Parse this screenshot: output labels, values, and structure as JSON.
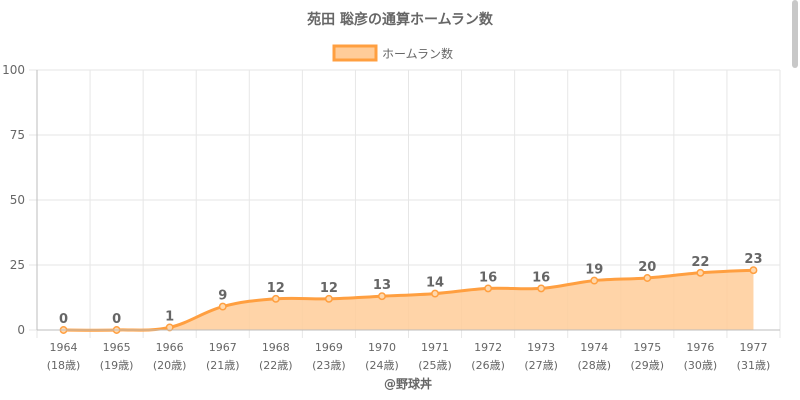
{
  "chart_data": {
    "type": "area",
    "title": "苑田 聡彦の通算ホームラン数",
    "legend": {
      "label": "ホームラン数",
      "position": "top-center"
    },
    "categories": [
      "1964",
      "1965",
      "1966",
      "1967",
      "1968",
      "1969",
      "1970",
      "1971",
      "1972",
      "1973",
      "1974",
      "1975",
      "1976",
      "1977"
    ],
    "category_sublabels": [
      "(18歳)",
      "(19歳)",
      "(20歳)",
      "(21歳)",
      "(22歳)",
      "(23歳)",
      "(24歳)",
      "(25歳)",
      "(26歳)",
      "(27歳)",
      "(28歳)",
      "(29歳)",
      "(30歳)",
      "(31歳)"
    ],
    "series": [
      {
        "name": "ホームラン数",
        "values": [
          0,
          0,
          1,
          9,
          12,
          12,
          13,
          14,
          16,
          16,
          19,
          20,
          22,
          23
        ]
      }
    ],
    "ylim": [
      0,
      100
    ],
    "yticks": [
      "0",
      "25",
      "50",
      "75",
      "100"
    ],
    "grid": true,
    "colors": {
      "line": "#ff9f40",
      "fill": "#ffcc99",
      "grid": "#e6e6e6",
      "axis": "#999999",
      "text": "#666666"
    },
    "footer": "@野球丼"
  }
}
